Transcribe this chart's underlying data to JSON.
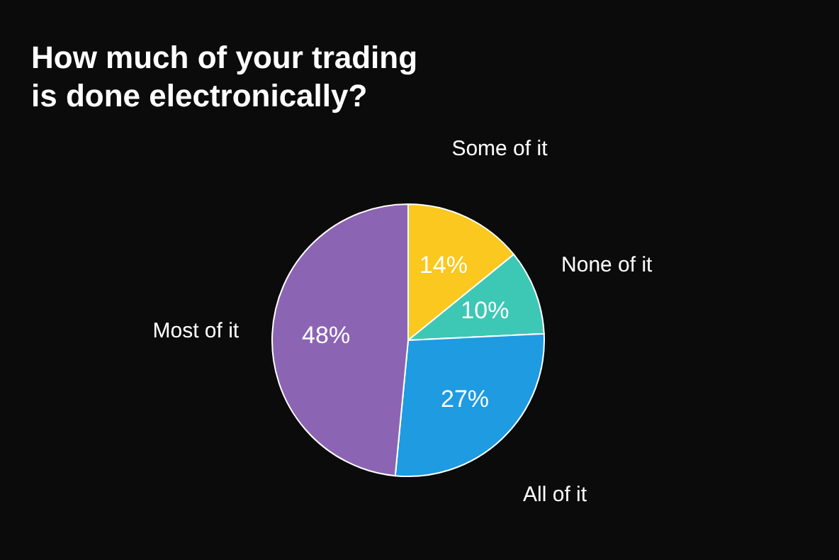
{
  "chart_data": {
    "type": "pie",
    "title": "How much of your trading\nis done electronically?",
    "categories": [
      "Some of it",
      "None of it",
      "All of it",
      "Most of it"
    ],
    "values": [
      14,
      10,
      27,
      48
    ],
    "colors": [
      "#fac81e",
      "#3cc8b4",
      "#1e9be1",
      "#8c64b4"
    ],
    "value_labels": [
      "14%",
      "10%",
      "27%",
      "48%"
    ],
    "legend": false
  }
}
